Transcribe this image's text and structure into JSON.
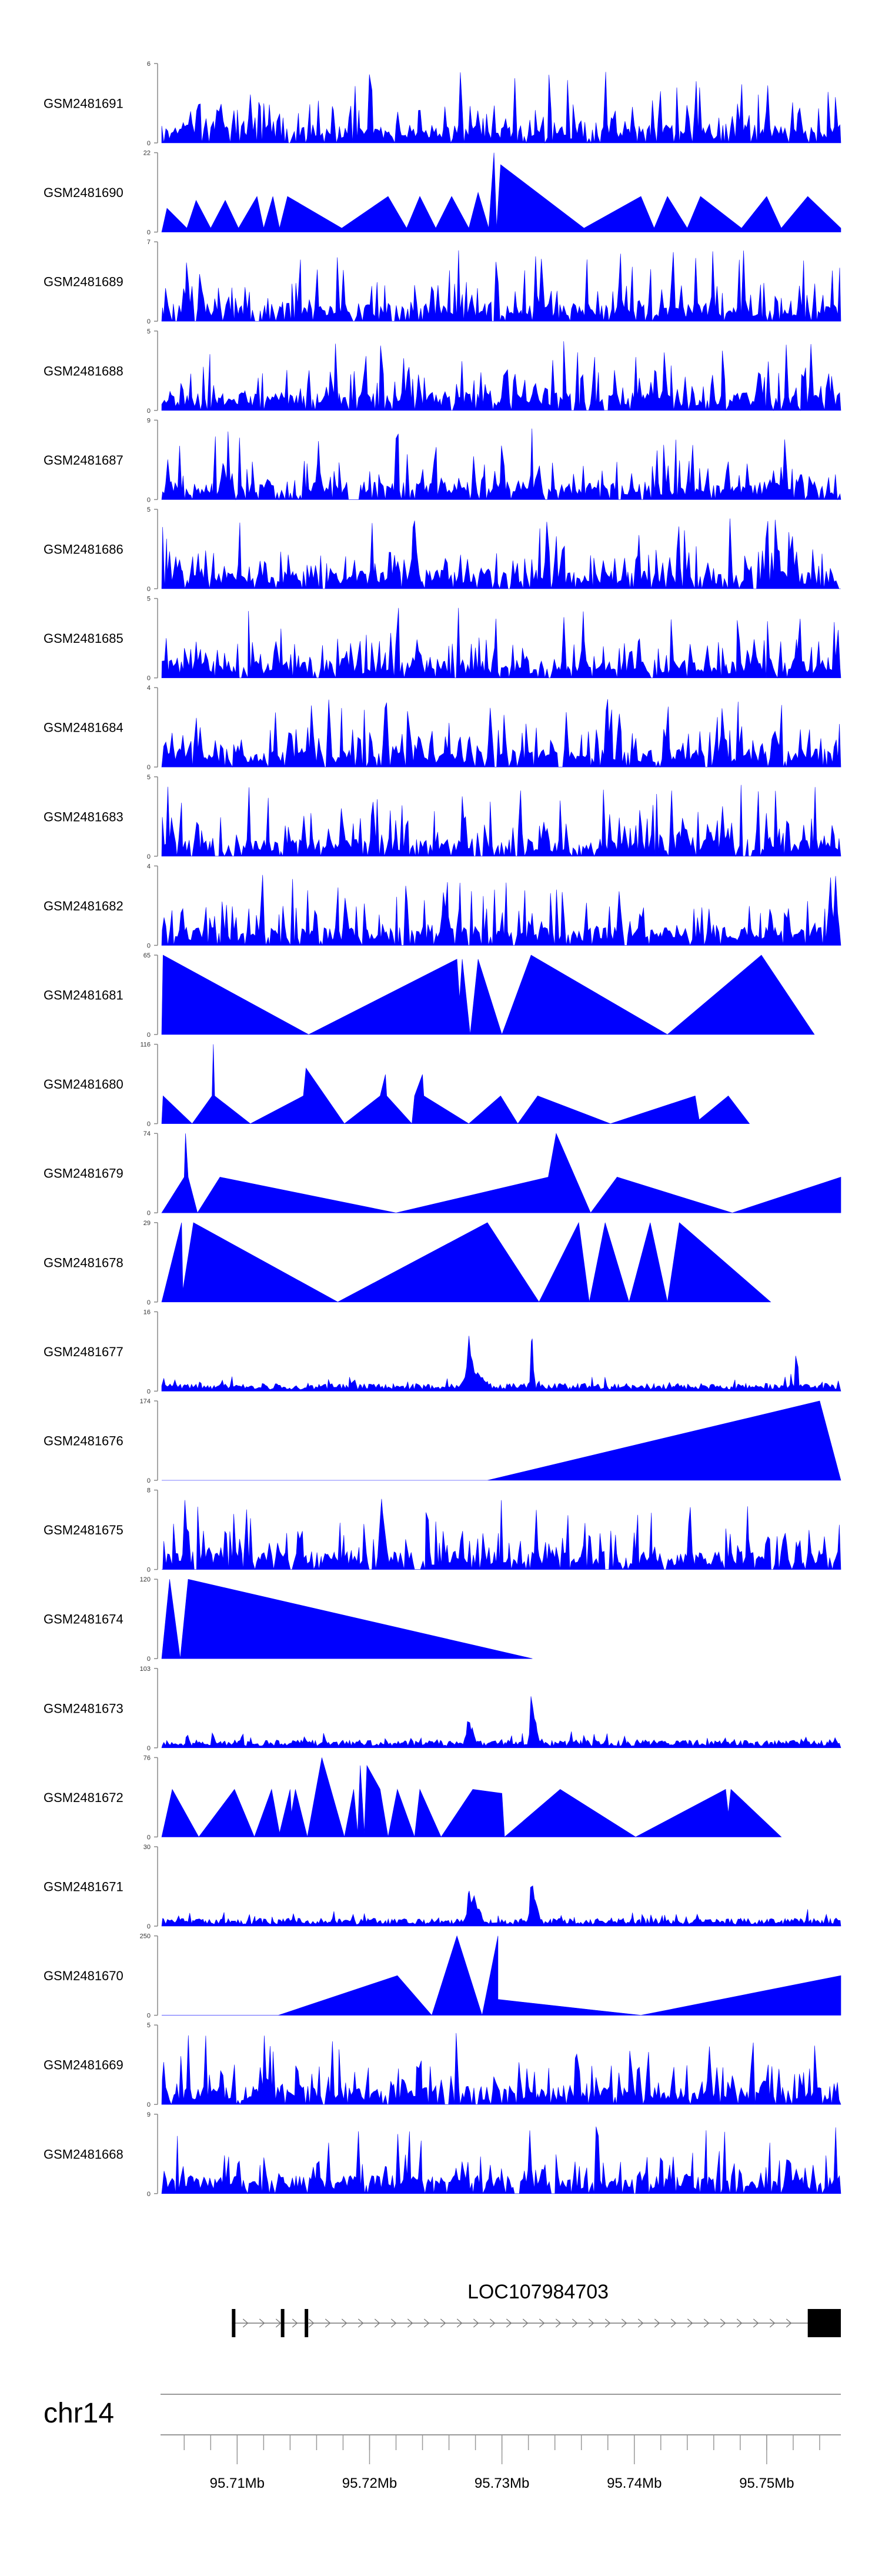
{
  "chart_data": {
    "type": "area",
    "x_range_mb": [
      95.7043,
      95.7556
    ],
    "fill_color": "#0000ff",
    "tracks": [
      {
        "name": "GSM2481691",
        "ymax": "6",
        "profile": "dense"
      },
      {
        "name": "GSM2481690",
        "ymax": "22",
        "profile": "sparse"
      },
      {
        "name": "GSM2481689",
        "ymax": "7",
        "profile": "dense"
      },
      {
        "name": "GSM2481688",
        "ymax": "5",
        "profile": "dense"
      },
      {
        "name": "GSM2481687",
        "ymax": "9",
        "profile": "dense"
      },
      {
        "name": "GSM2481686",
        "ymax": "5",
        "profile": "dense"
      },
      {
        "name": "GSM2481685",
        "ymax": "5",
        "profile": "dense"
      },
      {
        "name": "GSM2481684",
        "ymax": "4",
        "profile": "dense"
      },
      {
        "name": "GSM2481683",
        "ymax": "5",
        "profile": "dense"
      },
      {
        "name": "GSM2481682",
        "ymax": "4",
        "profile": "dense"
      },
      {
        "name": "GSM2481681",
        "ymax": "65",
        "profile": "sparse"
      },
      {
        "name": "GSM2481680",
        "ymax": "116",
        "profile": "sparse"
      },
      {
        "name": "GSM2481679",
        "ymax": "74",
        "profile": "sparse"
      },
      {
        "name": "GSM2481678",
        "ymax": "29",
        "profile": "sparse"
      },
      {
        "name": "GSM2481677",
        "ymax": "16",
        "profile": "peaky"
      },
      {
        "name": "GSM2481676",
        "ymax": "174",
        "profile": "sparse"
      },
      {
        "name": "GSM2481675",
        "ymax": "8",
        "profile": "dense"
      },
      {
        "name": "GSM2481674",
        "ymax": "120",
        "profile": "sparse"
      },
      {
        "name": "GSM2481673",
        "ymax": "103",
        "profile": "peaky"
      },
      {
        "name": "GSM2481672",
        "ymax": "76",
        "profile": "sparse"
      },
      {
        "name": "GSM2481671",
        "ymax": "30",
        "profile": "peaky"
      },
      {
        "name": "GSM2481670",
        "ymax": "250",
        "profile": "sparse"
      },
      {
        "name": "GSM2481669",
        "ymax": "5",
        "profile": "dense"
      },
      {
        "name": "GSM2481668",
        "ymax": "9",
        "profile": "dense"
      }
    ],
    "sparse_tracks": {
      "GSM2481690": [
        [
          95.7043,
          0
        ],
        [
          95.7047,
          0.3
        ],
        [
          95.7062,
          0.05
        ],
        [
          95.7069,
          0.4
        ],
        [
          95.708,
          0.05
        ],
        [
          95.7091,
          0.4
        ],
        [
          95.7101,
          0.05
        ],
        [
          95.7115,
          0.45
        ],
        [
          95.712,
          0.05
        ],
        [
          95.7127,
          0.45
        ],
        [
          95.7132,
          0.05
        ],
        [
          95.7138,
          0.45
        ],
        [
          95.7179,
          0.05
        ],
        [
          95.7214,
          0.45
        ],
        [
          95.7228,
          0.05
        ],
        [
          95.7238,
          0.45
        ],
        [
          95.725,
          0.05
        ],
        [
          95.7262,
          0.45
        ],
        [
          95.7275,
          0.05
        ],
        [
          95.7282,
          0.5
        ],
        [
          95.729,
          0.05
        ],
        [
          95.7294,
          1.0
        ],
        [
          95.7296,
          0.05
        ],
        [
          95.7299,
          0.85
        ],
        [
          95.7362,
          0.05
        ],
        [
          95.7405,
          0.45
        ],
        [
          95.7415,
          0.05
        ],
        [
          95.7425,
          0.45
        ],
        [
          95.744,
          0.05
        ],
        [
          95.745,
          0.45
        ],
        [
          95.7481,
          0.05
        ],
        [
          95.75,
          0.45
        ],
        [
          95.7511,
          0.05
        ],
        [
          95.7531,
          0.45
        ],
        [
          95.7556,
          0.05
        ]
      ],
      "GSM2481681": [
        [
          95.7043,
          0
        ],
        [
          95.7044,
          1.0
        ],
        [
          95.7154,
          0
        ],
        [
          95.7266,
          0.95
        ],
        [
          95.7268,
          0.45
        ],
        [
          95.727,
          0.95
        ],
        [
          95.7276,
          0
        ],
        [
          95.7282,
          0.95
        ],
        [
          95.73,
          0
        ],
        [
          95.7322,
          1.0
        ],
        [
          95.7425,
          0
        ],
        [
          95.7496,
          1.0
        ],
        [
          95.7536,
          0
        ]
      ],
      "GSM2481680": [
        [
          95.7043,
          0
        ],
        [
          95.7044,
          0.35
        ],
        [
          95.7066,
          0
        ],
        [
          95.7081,
          0.35
        ],
        [
          95.7082,
          1.0
        ],
        [
          95.7083,
          0.35
        ],
        [
          95.711,
          0
        ],
        [
          95.715,
          0.35
        ],
        [
          95.7152,
          0.7
        ],
        [
          95.7181,
          0
        ],
        [
          95.7208,
          0.35
        ],
        [
          95.7212,
          0.62
        ],
        [
          95.7213,
          0.35
        ],
        [
          95.7232,
          0
        ],
        [
          95.7234,
          0.35
        ],
        [
          95.724,
          0.62
        ],
        [
          95.7241,
          0.35
        ],
        [
          95.7275,
          0
        ],
        [
          95.7299,
          0.35
        ],
        [
          95.7312,
          0
        ],
        [
          95.7327,
          0.35
        ],
        [
          95.7382,
          0
        ],
        [
          95.7446,
          0.35
        ],
        [
          95.7449,
          0.05
        ],
        [
          95.7471,
          0.35
        ],
        [
          95.7487,
          0
        ]
      ],
      "GSM2481679": [
        [
          95.7043,
          0
        ],
        [
          95.706,
          0.45
        ],
        [
          95.7061,
          1.0
        ],
        [
          95.7063,
          0.45
        ],
        [
          95.707,
          0
        ],
        [
          95.7087,
          0.45
        ],
        [
          95.722,
          0
        ],
        [
          95.7335,
          0.45
        ],
        [
          95.7341,
          1.0
        ],
        [
          95.7367,
          0
        ],
        [
          95.7387,
          0.45
        ],
        [
          95.7474,
          0
        ],
        [
          95.7556,
          0.45
        ]
      ],
      "GSM2481678": [
        [
          95.7043,
          0
        ],
        [
          95.7058,
          1.0
        ],
        [
          95.7059,
          0.15
        ],
        [
          95.7067,
          1.0
        ],
        [
          95.7176,
          0
        ],
        [
          95.7289,
          1.0
        ],
        [
          95.7328,
          0
        ],
        [
          95.7358,
          1.0
        ],
        [
          95.7366,
          0
        ],
        [
          95.7378,
          1.0
        ],
        [
          95.7396,
          0
        ],
        [
          95.7412,
          1.0
        ],
        [
          95.7425,
          0
        ],
        [
          95.7434,
          1.0
        ],
        [
          95.7503,
          0
        ]
      ],
      "GSM2481676": [
        [
          95.7043,
          0
        ],
        [
          95.7289,
          0
        ],
        [
          95.754,
          1.0
        ],
        [
          95.7556,
          0
        ]
      ],
      "GSM2481674": [
        [
          95.7043,
          0
        ],
        [
          95.7049,
          1.0
        ],
        [
          95.7057,
          0
        ],
        [
          95.7063,
          1.0
        ],
        [
          95.7323,
          0
        ]
      ],
      "GSM2481672": [
        [
          95.7043,
          0
        ],
        [
          95.7051,
          0.6
        ],
        [
          95.7071,
          0
        ],
        [
          95.7098,
          0.6
        ],
        [
          95.7113,
          0
        ],
        [
          95.7126,
          0.6
        ],
        [
          95.7132,
          0.05
        ],
        [
          95.714,
          0.6
        ],
        [
          95.7141,
          0.3
        ],
        [
          95.7144,
          0.6
        ],
        [
          95.7153,
          0
        ],
        [
          95.7164,
          1.0
        ],
        [
          95.7181,
          0
        ],
        [
          95.7188,
          0.6
        ],
        [
          95.7191,
          0.05
        ],
        [
          95.7193,
          0.9
        ],
        [
          95.7196,
          0.05
        ],
        [
          95.7198,
          0.9
        ],
        [
          95.7208,
          0.6
        ],
        [
          95.7214,
          0
        ],
        [
          95.7221,
          0.6
        ],
        [
          95.7234,
          0
        ],
        [
          95.7238,
          0.6
        ],
        [
          95.7254,
          0
        ],
        [
          95.7278,
          0.6
        ],
        [
          95.73,
          0.55
        ],
        [
          95.7302,
          0
        ],
        [
          95.7344,
          0.6
        ],
        [
          95.7401,
          0
        ],
        [
          95.7469,
          0.6
        ],
        [
          95.7471,
          0.3
        ],
        [
          95.7473,
          0.6
        ],
        [
          95.7511,
          0
        ]
      ],
      "GSM2481670": [
        [
          95.7043,
          0
        ],
        [
          95.7131,
          0
        ],
        [
          95.7221,
          0.5
        ],
        [
          95.7247,
          0
        ],
        [
          95.7266,
          1.0
        ],
        [
          95.7285,
          0
        ],
        [
          95.7297,
          1.0
        ],
        [
          95.7297,
          0.2
        ],
        [
          95.7405,
          0
        ],
        [
          95.7556,
          0.5
        ]
      ]
    },
    "gene": {
      "name": "LOC107984703",
      "start_mb": 95.7096,
      "end_mb": 95.7556,
      "exons_mb": [
        [
          95.7096,
          95.7098
        ],
        [
          95.7133,
          95.7135
        ],
        [
          95.7151,
          95.7153
        ],
        [
          95.7531,
          95.7556
        ]
      ],
      "strand": "+"
    },
    "chromosome": "chr14",
    "axis": {
      "ticks_mb": [
        95.71,
        95.72,
        95.73,
        95.74,
        95.75
      ],
      "tick_labels": [
        "95.71Mb",
        "95.72Mb",
        "95.73Mb",
        "95.74Mb",
        "95.75Mb"
      ]
    }
  }
}
